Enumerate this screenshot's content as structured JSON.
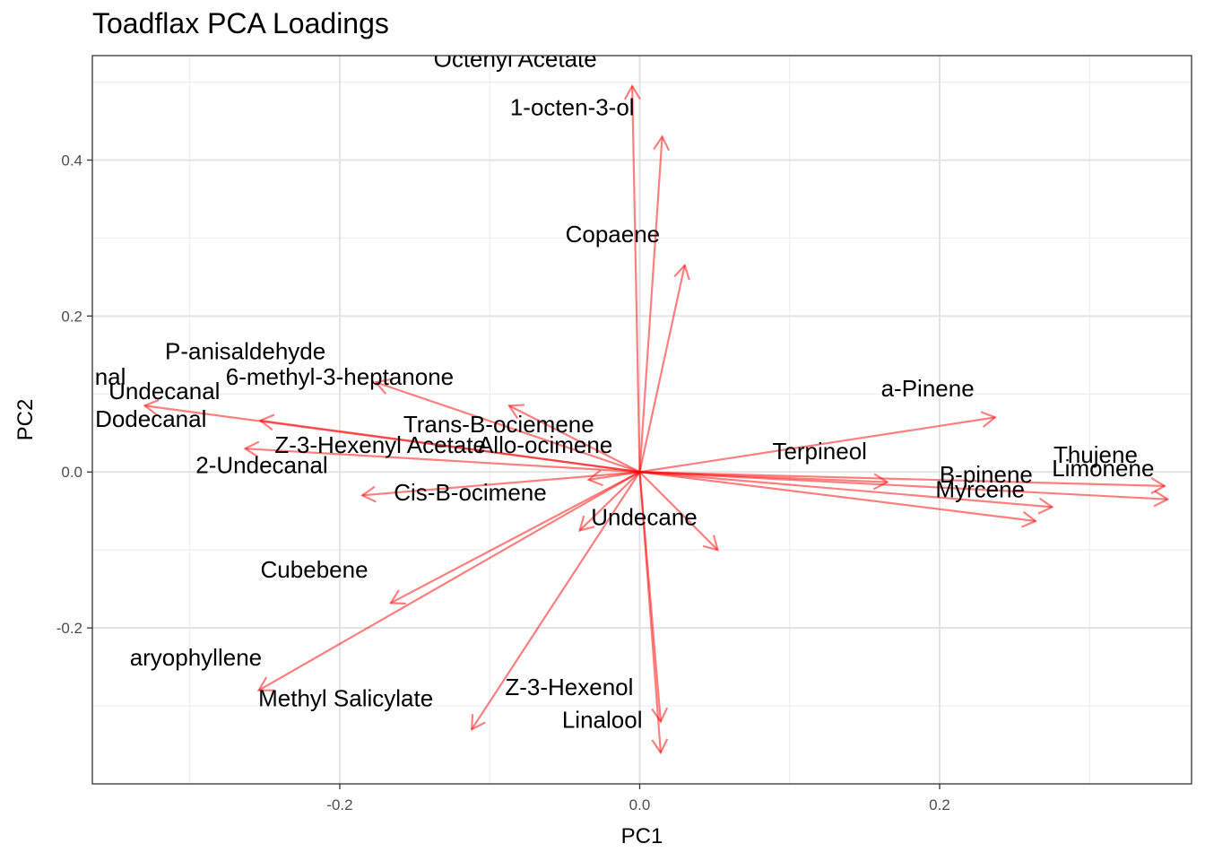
{
  "chart_data": {
    "type": "scatter",
    "title": "Toadflax PCA Loadings",
    "xlabel": "PC1",
    "ylabel": "PC2",
    "xlim": [
      -0.365,
      0.368
    ],
    "ylim": [
      -0.4,
      0.534
    ],
    "x_ticks": [
      -0.2,
      0.0,
      0.2
    ],
    "x_tick_labels": [
      "-0.2",
      "0.0",
      "0.2"
    ],
    "y_ticks": [
      -0.2,
      0.0,
      0.2,
      0.4
    ],
    "y_tick_labels": [
      "-0.2",
      "0.0",
      "0.2",
      "0.4"
    ],
    "grid": true,
    "theme": "bw",
    "arrow_color": "#ff0000",
    "arrows": [
      {
        "x": -0.005,
        "y": 0.495
      },
      {
        "x": 0.015,
        "y": 0.43
      },
      {
        "x": 0.03,
        "y": 0.265
      },
      {
        "x": 0.237,
        "y": 0.07
      },
      {
        "x": 0.35,
        "y": -0.018
      },
      {
        "x": 0.352,
        "y": -0.035
      },
      {
        "x": 0.275,
        "y": -0.045
      },
      {
        "x": 0.264,
        "y": -0.063
      },
      {
        "x": 0.165,
        "y": -0.013
      },
      {
        "x": 0.052,
        "y": -0.1
      },
      {
        "x": 0.014,
        "y": -0.36
      },
      {
        "x": 0.014,
        "y": -0.32
      },
      {
        "x": -0.112,
        "y": -0.33
      },
      {
        "x": -0.254,
        "y": -0.28
      },
      {
        "x": -0.166,
        "y": -0.168
      },
      {
        "x": -0.04,
        "y": -0.075
      },
      {
        "x": -0.185,
        "y": -0.03
      },
      {
        "x": -0.034,
        "y": -0.01
      },
      {
        "x": -0.087,
        "y": 0.085
      },
      {
        "x": -0.176,
        "y": 0.115
      },
      {
        "x": -0.263,
        "y": 0.03
      },
      {
        "x": -0.253,
        "y": 0.066
      },
      {
        "x": -0.33,
        "y": 0.085
      }
    ],
    "labels": [
      {
        "text": "Octenyl Acetate",
        "x": -0.083,
        "y": 0.53
      },
      {
        "text": "1-octen-3-ol",
        "x": -0.045,
        "y": 0.468
      },
      {
        "text": "Copaene",
        "x": -0.018,
        "y": 0.305
      },
      {
        "text": "P-anisaldehyde",
        "x": -0.263,
        "y": 0.155
      },
      {
        "text": "nal",
        "x": -0.353,
        "y": 0.122
      },
      {
        "text": "6-methyl-3-heptanone",
        "x": -0.2,
        "y": 0.122
      },
      {
        "text": "Undecanal",
        "x": -0.317,
        "y": 0.104
      },
      {
        "text": "Dodecanal",
        "x": -0.326,
        "y": 0.068
      },
      {
        "text": "Trans-B-ociemene",
        "x": -0.094,
        "y": 0.061
      },
      {
        "text": "Z-3-Hexenyl Acetate",
        "x": -0.173,
        "y": 0.035
      },
      {
        "text": "Allo-ocimene",
        "x": -0.063,
        "y": 0.035
      },
      {
        "text": "2-Undecanal",
        "x": -0.252,
        "y": 0.009
      },
      {
        "text": "Cis-B-ocimene",
        "x": -0.113,
        "y": -0.026
      },
      {
        "text": "Undecane",
        "x": 0.003,
        "y": -0.058
      },
      {
        "text": "Cubebene",
        "x": -0.217,
        "y": -0.125
      },
      {
        "text": "aryophyllene",
        "x": -0.296,
        "y": -0.238
      },
      {
        "text": "Methyl Salicylate",
        "x": -0.196,
        "y": -0.29
      },
      {
        "text": "Z-3-Hexenol",
        "x": -0.047,
        "y": -0.276
      },
      {
        "text": "Linalool",
        "x": -0.025,
        "y": -0.318
      },
      {
        "text": "a-Pinene",
        "x": 0.192,
        "y": 0.107
      },
      {
        "text": "Terpineol",
        "x": 0.12,
        "y": 0.027
      },
      {
        "text": "Thujene",
        "x": 0.304,
        "y": 0.022
      },
      {
        "text": "Limonene",
        "x": 0.309,
        "y": 0.005
      },
      {
        "text": "B-pinene",
        "x": 0.231,
        "y": -0.003
      },
      {
        "text": "Myrcene",
        "x": 0.227,
        "y": -0.022
      }
    ]
  }
}
